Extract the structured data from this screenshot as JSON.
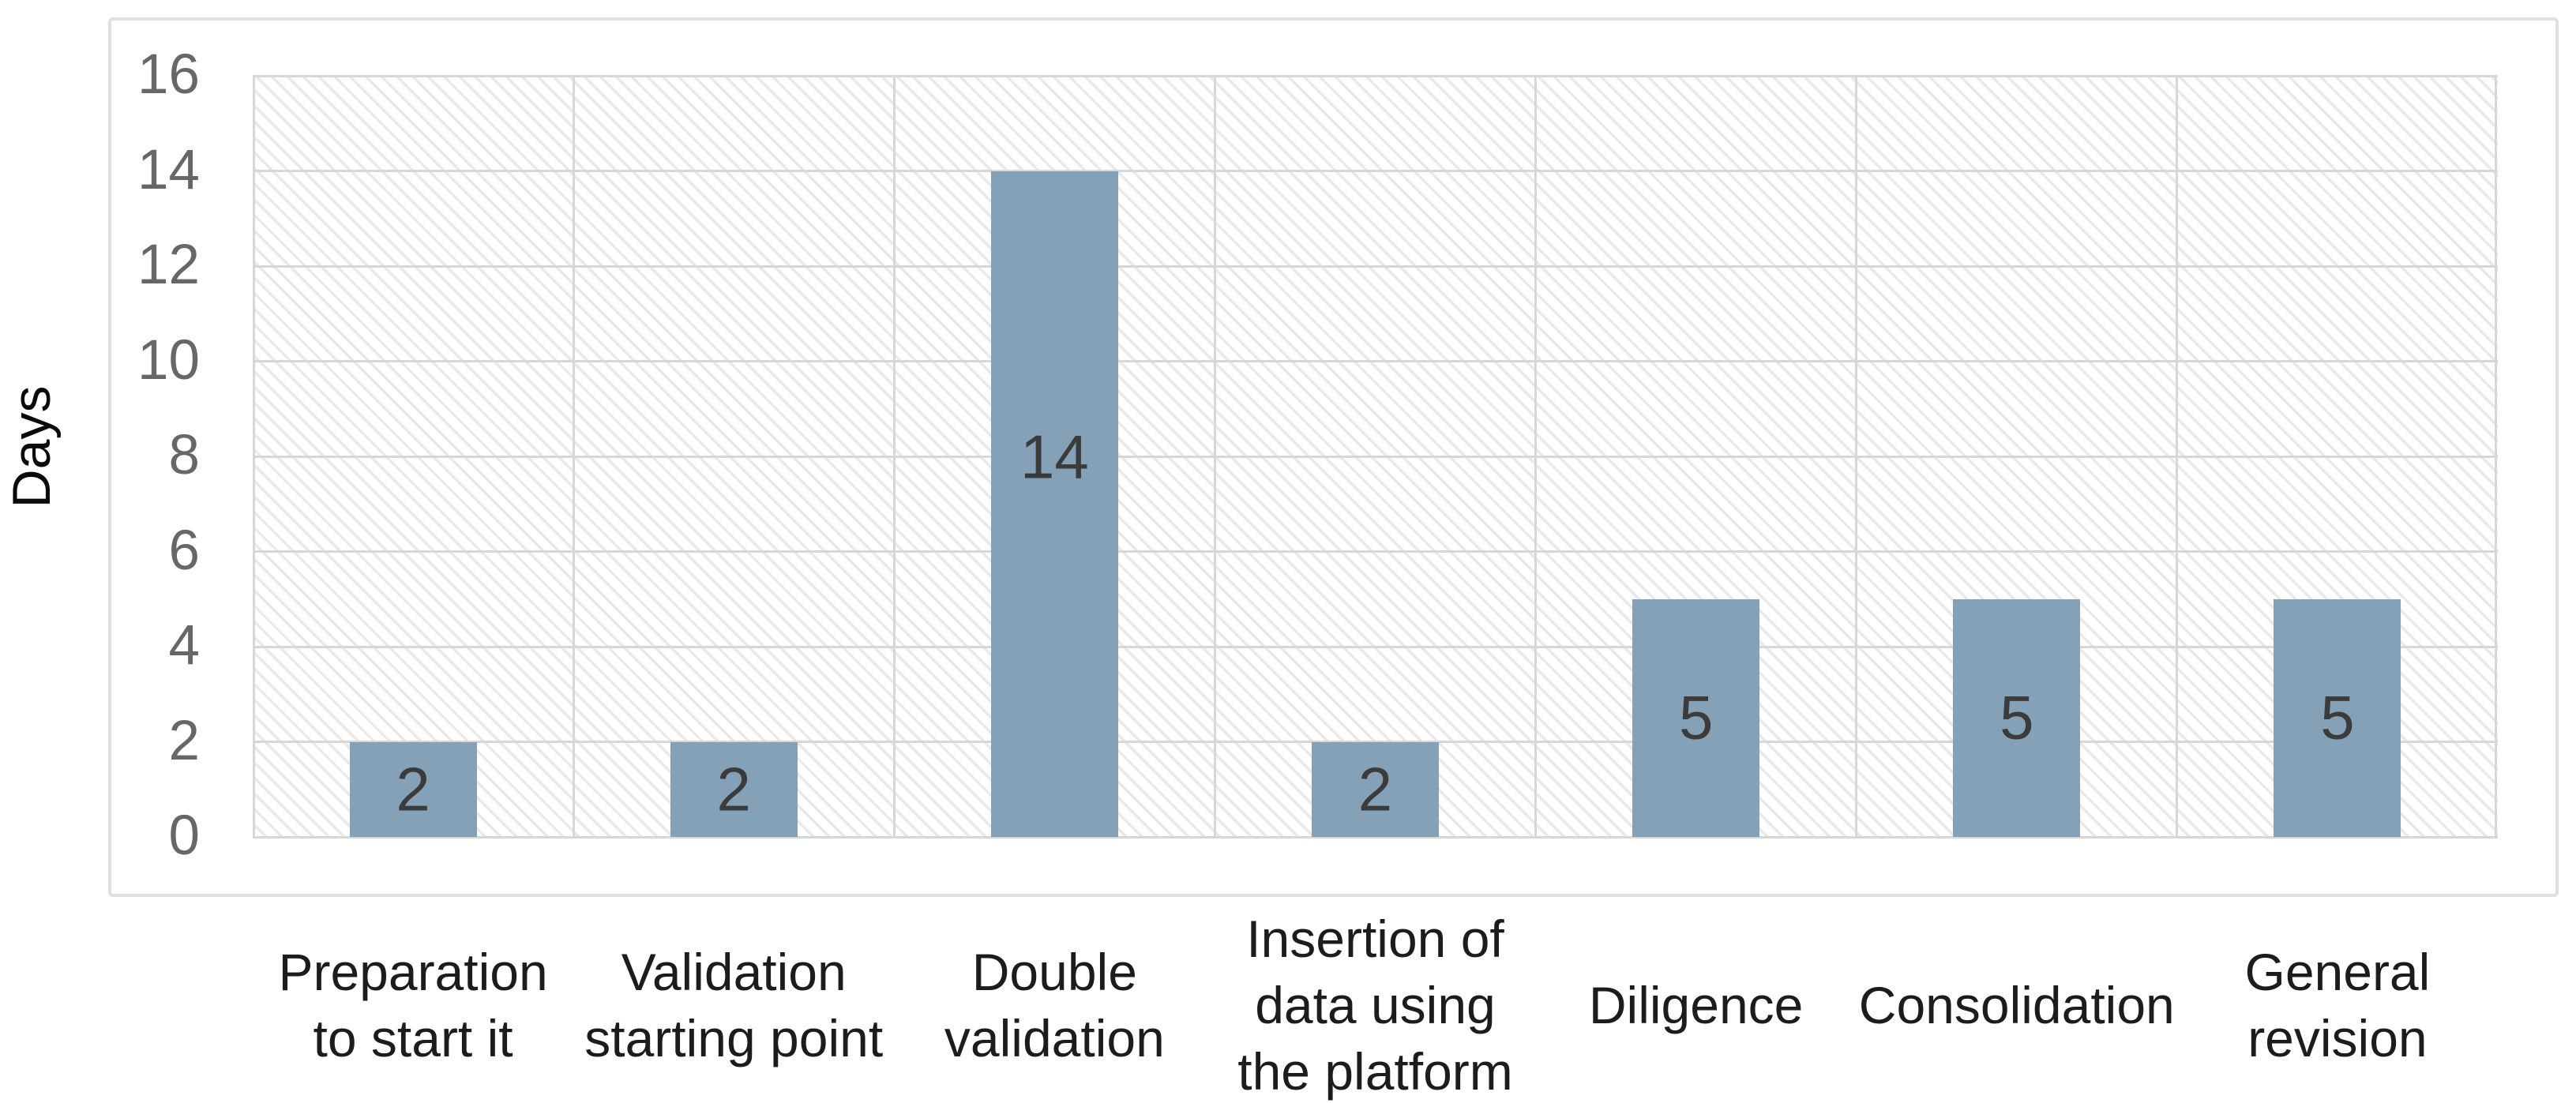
{
  "chart_data": {
    "type": "bar",
    "title": "",
    "xlabel": "",
    "ylabel": "Days",
    "categories": [
      "Preparation\nto start it",
      "Validation\nstarting point",
      "Double\nvalidation",
      "Insertion of\ndata using\nthe platform",
      "Diligence",
      "Consolidation",
      "General\nrevision"
    ],
    "values": [
      2,
      2,
      14,
      2,
      5,
      5,
      5
    ],
    "data_labels": [
      "2",
      "2",
      "14",
      "2",
      "5",
      "5",
      "5"
    ],
    "y_ticks": [
      0,
      2,
      4,
      6,
      8,
      10,
      12,
      14,
      16
    ],
    "ylim": [
      0,
      16
    ],
    "grid": "both",
    "legend": "none",
    "colors": {
      "bar": "#84a1b7",
      "bar_value_label": "#3b3b3b",
      "y_tick_label": "#676767",
      "category_label": "#1c1c1c",
      "axis_title": "#0a0a0a",
      "gridline": "#d7d7d7",
      "hatch_line": "#e9e9e9",
      "box_border": "#e0e0e0",
      "plot_background": "#ffffff"
    }
  }
}
